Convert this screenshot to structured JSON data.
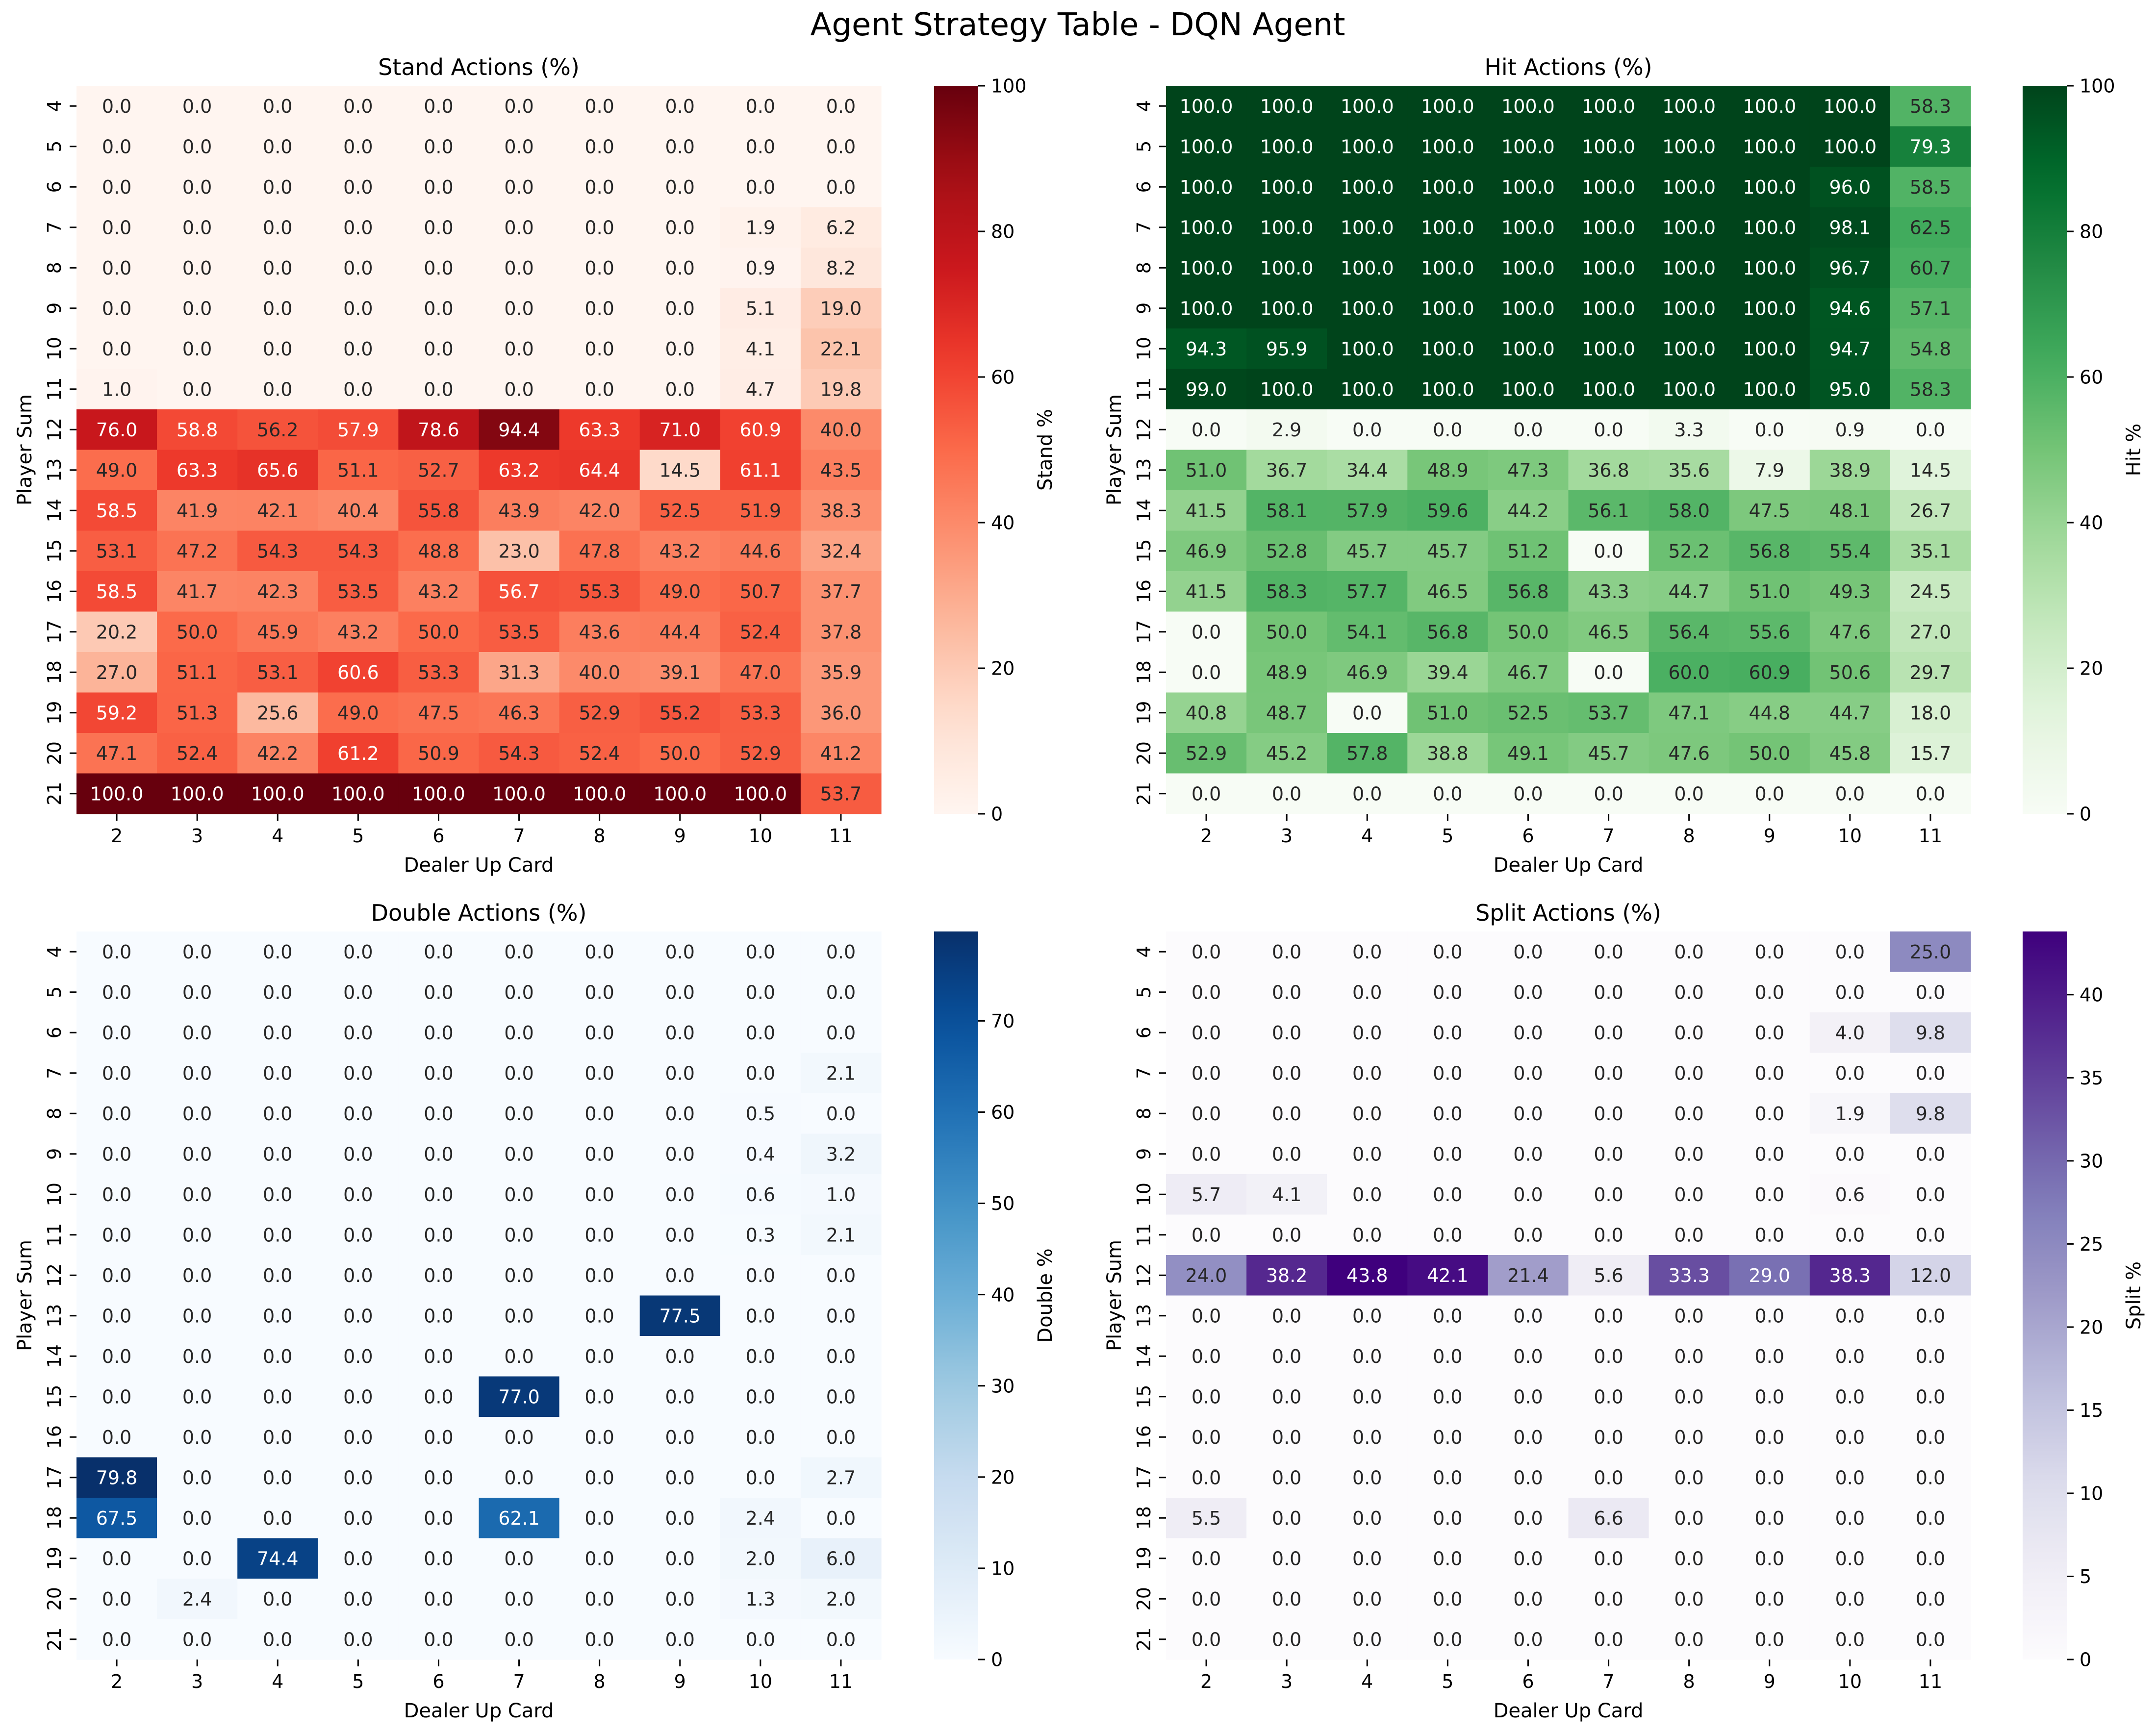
{
  "figure_title": "Agent Strategy Table - DQN Agent",
  "chart_data": [
    {
      "type": "heatmap",
      "title": "Stand Actions (%)",
      "xlabel": "Dealer Up Card",
      "ylabel": "Player Sum",
      "colorbar_label": "Stand %",
      "colormap": "Reds",
      "x_labels": [
        "2",
        "3",
        "4",
        "5",
        "6",
        "7",
        "8",
        "9",
        "10",
        "11"
      ],
      "y_labels": [
        "4",
        "5",
        "6",
        "7",
        "8",
        "9",
        "10",
        "11",
        "12",
        "13",
        "14",
        "15",
        "16",
        "17",
        "18",
        "19",
        "20",
        "21"
      ],
      "vmin": 0,
      "vmax": 100,
      "colorbar_ticks": [
        0,
        20,
        40,
        60,
        80,
        100
      ],
      "values": [
        [
          0.0,
          0.0,
          0.0,
          0.0,
          0.0,
          0.0,
          0.0,
          0.0,
          0.0,
          0.0
        ],
        [
          0.0,
          0.0,
          0.0,
          0.0,
          0.0,
          0.0,
          0.0,
          0.0,
          0.0,
          0.0
        ],
        [
          0.0,
          0.0,
          0.0,
          0.0,
          0.0,
          0.0,
          0.0,
          0.0,
          0.0,
          0.0
        ],
        [
          0.0,
          0.0,
          0.0,
          0.0,
          0.0,
          0.0,
          0.0,
          0.0,
          1.9,
          6.2
        ],
        [
          0.0,
          0.0,
          0.0,
          0.0,
          0.0,
          0.0,
          0.0,
          0.0,
          0.9,
          8.2
        ],
        [
          0.0,
          0.0,
          0.0,
          0.0,
          0.0,
          0.0,
          0.0,
          0.0,
          5.1,
          19.0
        ],
        [
          0.0,
          0.0,
          0.0,
          0.0,
          0.0,
          0.0,
          0.0,
          0.0,
          4.1,
          22.1
        ],
        [
          1.0,
          0.0,
          0.0,
          0.0,
          0.0,
          0.0,
          0.0,
          0.0,
          4.7,
          19.8
        ],
        [
          76.0,
          58.8,
          56.2,
          57.9,
          78.6,
          94.4,
          63.3,
          71.0,
          60.9,
          40.0
        ],
        [
          49.0,
          63.3,
          65.6,
          51.1,
          52.7,
          63.2,
          64.4,
          14.5,
          61.1,
          43.5
        ],
        [
          58.5,
          41.9,
          42.1,
          40.4,
          55.8,
          43.9,
          42.0,
          52.5,
          51.9,
          38.3
        ],
        [
          53.1,
          47.2,
          54.3,
          54.3,
          48.8,
          23.0,
          47.8,
          43.2,
          44.6,
          32.4
        ],
        [
          58.5,
          41.7,
          42.3,
          53.5,
          43.2,
          56.7,
          55.3,
          49.0,
          50.7,
          37.7
        ],
        [
          20.2,
          50.0,
          45.9,
          43.2,
          50.0,
          53.5,
          43.6,
          44.4,
          52.4,
          37.8
        ],
        [
          27.0,
          51.1,
          53.1,
          60.6,
          53.3,
          31.3,
          40.0,
          39.1,
          47.0,
          35.9
        ],
        [
          59.2,
          51.3,
          25.6,
          49.0,
          47.5,
          46.3,
          52.9,
          55.2,
          53.3,
          36.0
        ],
        [
          47.1,
          52.4,
          42.2,
          61.2,
          50.9,
          54.3,
          52.4,
          50.0,
          52.9,
          41.2
        ],
        [
          100.0,
          100.0,
          100.0,
          100.0,
          100.0,
          100.0,
          100.0,
          100.0,
          100.0,
          53.7
        ]
      ]
    },
    {
      "type": "heatmap",
      "title": "Hit Actions (%)",
      "xlabel": "Dealer Up Card",
      "ylabel": "Player Sum",
      "colorbar_label": "Hit %",
      "colormap": "Greens",
      "x_labels": [
        "2",
        "3",
        "4",
        "5",
        "6",
        "7",
        "8",
        "9",
        "10",
        "11"
      ],
      "y_labels": [
        "4",
        "5",
        "6",
        "7",
        "8",
        "9",
        "10",
        "11",
        "12",
        "13",
        "14",
        "15",
        "16",
        "17",
        "18",
        "19",
        "20",
        "21"
      ],
      "vmin": 0,
      "vmax": 100,
      "colorbar_ticks": [
        0,
        20,
        40,
        60,
        80,
        100
      ],
      "values": [
        [
          100.0,
          100.0,
          100.0,
          100.0,
          100.0,
          100.0,
          100.0,
          100.0,
          100.0,
          58.3
        ],
        [
          100.0,
          100.0,
          100.0,
          100.0,
          100.0,
          100.0,
          100.0,
          100.0,
          100.0,
          79.3
        ],
        [
          100.0,
          100.0,
          100.0,
          100.0,
          100.0,
          100.0,
          100.0,
          100.0,
          96.0,
          58.5
        ],
        [
          100.0,
          100.0,
          100.0,
          100.0,
          100.0,
          100.0,
          100.0,
          100.0,
          98.1,
          62.5
        ],
        [
          100.0,
          100.0,
          100.0,
          100.0,
          100.0,
          100.0,
          100.0,
          100.0,
          96.7,
          60.7
        ],
        [
          100.0,
          100.0,
          100.0,
          100.0,
          100.0,
          100.0,
          100.0,
          100.0,
          94.6,
          57.1
        ],
        [
          94.3,
          95.9,
          100.0,
          100.0,
          100.0,
          100.0,
          100.0,
          100.0,
          94.7,
          54.8
        ],
        [
          99.0,
          100.0,
          100.0,
          100.0,
          100.0,
          100.0,
          100.0,
          100.0,
          95.0,
          58.3
        ],
        [
          0.0,
          2.9,
          0.0,
          0.0,
          0.0,
          0.0,
          3.3,
          0.0,
          0.9,
          0.0
        ],
        [
          51.0,
          36.7,
          34.4,
          48.9,
          47.3,
          36.8,
          35.6,
          7.9,
          38.9,
          14.5
        ],
        [
          41.5,
          58.1,
          57.9,
          59.6,
          44.2,
          56.1,
          58.0,
          47.5,
          48.1,
          26.7
        ],
        [
          46.9,
          52.8,
          45.7,
          45.7,
          51.2,
          0.0,
          52.2,
          56.8,
          55.4,
          35.1
        ],
        [
          41.5,
          58.3,
          57.7,
          46.5,
          56.8,
          43.3,
          44.7,
          51.0,
          49.3,
          24.5
        ],
        [
          0.0,
          50.0,
          54.1,
          56.8,
          50.0,
          46.5,
          56.4,
          55.6,
          47.6,
          27.0
        ],
        [
          0.0,
          48.9,
          46.9,
          39.4,
          46.7,
          0.0,
          60.0,
          60.9,
          50.6,
          29.7
        ],
        [
          40.8,
          48.7,
          0.0,
          51.0,
          52.5,
          53.7,
          47.1,
          44.8,
          44.7,
          18.0
        ],
        [
          52.9,
          45.2,
          57.8,
          38.8,
          49.1,
          45.7,
          47.6,
          50.0,
          45.8,
          15.7
        ],
        [
          0.0,
          0.0,
          0.0,
          0.0,
          0.0,
          0.0,
          0.0,
          0.0,
          0.0,
          0.0
        ]
      ]
    },
    {
      "type": "heatmap",
      "title": "Double Actions (%)",
      "xlabel": "Dealer Up Card",
      "ylabel": "Player Sum",
      "colorbar_label": "Double %",
      "colormap": "Blues",
      "x_labels": [
        "2",
        "3",
        "4",
        "5",
        "6",
        "7",
        "8",
        "9",
        "10",
        "11"
      ],
      "y_labels": [
        "4",
        "5",
        "6",
        "7",
        "8",
        "9",
        "10",
        "11",
        "12",
        "13",
        "14",
        "15",
        "16",
        "17",
        "18",
        "19",
        "20",
        "21"
      ],
      "vmin": 0,
      "vmax": 79.8,
      "colorbar_ticks": [
        0,
        10,
        20,
        30,
        40,
        50,
        60,
        70
      ],
      "values": [
        [
          0.0,
          0.0,
          0.0,
          0.0,
          0.0,
          0.0,
          0.0,
          0.0,
          0.0,
          0.0
        ],
        [
          0.0,
          0.0,
          0.0,
          0.0,
          0.0,
          0.0,
          0.0,
          0.0,
          0.0,
          0.0
        ],
        [
          0.0,
          0.0,
          0.0,
          0.0,
          0.0,
          0.0,
          0.0,
          0.0,
          0.0,
          0.0
        ],
        [
          0.0,
          0.0,
          0.0,
          0.0,
          0.0,
          0.0,
          0.0,
          0.0,
          0.0,
          2.1
        ],
        [
          0.0,
          0.0,
          0.0,
          0.0,
          0.0,
          0.0,
          0.0,
          0.0,
          0.5,
          0.0
        ],
        [
          0.0,
          0.0,
          0.0,
          0.0,
          0.0,
          0.0,
          0.0,
          0.0,
          0.4,
          3.2
        ],
        [
          0.0,
          0.0,
          0.0,
          0.0,
          0.0,
          0.0,
          0.0,
          0.0,
          0.6,
          1.0
        ],
        [
          0.0,
          0.0,
          0.0,
          0.0,
          0.0,
          0.0,
          0.0,
          0.0,
          0.3,
          2.1
        ],
        [
          0.0,
          0.0,
          0.0,
          0.0,
          0.0,
          0.0,
          0.0,
          0.0,
          0.0,
          0.0
        ],
        [
          0.0,
          0.0,
          0.0,
          0.0,
          0.0,
          0.0,
          0.0,
          77.5,
          0.0,
          0.0
        ],
        [
          0.0,
          0.0,
          0.0,
          0.0,
          0.0,
          0.0,
          0.0,
          0.0,
          0.0,
          0.0
        ],
        [
          0.0,
          0.0,
          0.0,
          0.0,
          0.0,
          77.0,
          0.0,
          0.0,
          0.0,
          0.0
        ],
        [
          0.0,
          0.0,
          0.0,
          0.0,
          0.0,
          0.0,
          0.0,
          0.0,
          0.0,
          0.0
        ],
        [
          79.8,
          0.0,
          0.0,
          0.0,
          0.0,
          0.0,
          0.0,
          0.0,
          0.0,
          2.7
        ],
        [
          67.5,
          0.0,
          0.0,
          0.0,
          0.0,
          62.1,
          0.0,
          0.0,
          2.4,
          0.0
        ],
        [
          0.0,
          0.0,
          74.4,
          0.0,
          0.0,
          0.0,
          0.0,
          0.0,
          2.0,
          6.0
        ],
        [
          0.0,
          2.4,
          0.0,
          0.0,
          0.0,
          0.0,
          0.0,
          0.0,
          1.3,
          2.0
        ],
        [
          0.0,
          0.0,
          0.0,
          0.0,
          0.0,
          0.0,
          0.0,
          0.0,
          0.0,
          0.0
        ]
      ]
    },
    {
      "type": "heatmap",
      "title": "Split Actions (%)",
      "xlabel": "Dealer Up Card",
      "ylabel": "Player Sum",
      "colorbar_label": "Split %",
      "colormap": "Purples",
      "x_labels": [
        "2",
        "3",
        "4",
        "5",
        "6",
        "7",
        "8",
        "9",
        "10",
        "11"
      ],
      "y_labels": [
        "4",
        "5",
        "6",
        "7",
        "8",
        "9",
        "10",
        "11",
        "12",
        "13",
        "14",
        "15",
        "16",
        "17",
        "18",
        "19",
        "20",
        "21"
      ],
      "vmin": 0,
      "vmax": 43.8,
      "colorbar_ticks": [
        0,
        5,
        10,
        15,
        20,
        25,
        30,
        35,
        40
      ],
      "values": [
        [
          0.0,
          0.0,
          0.0,
          0.0,
          0.0,
          0.0,
          0.0,
          0.0,
          0.0,
          25.0
        ],
        [
          0.0,
          0.0,
          0.0,
          0.0,
          0.0,
          0.0,
          0.0,
          0.0,
          0.0,
          0.0
        ],
        [
          0.0,
          0.0,
          0.0,
          0.0,
          0.0,
          0.0,
          0.0,
          0.0,
          4.0,
          9.8
        ],
        [
          0.0,
          0.0,
          0.0,
          0.0,
          0.0,
          0.0,
          0.0,
          0.0,
          0.0,
          0.0
        ],
        [
          0.0,
          0.0,
          0.0,
          0.0,
          0.0,
          0.0,
          0.0,
          0.0,
          1.9,
          9.8
        ],
        [
          0.0,
          0.0,
          0.0,
          0.0,
          0.0,
          0.0,
          0.0,
          0.0,
          0.0,
          0.0
        ],
        [
          5.7,
          4.1,
          0.0,
          0.0,
          0.0,
          0.0,
          0.0,
          0.0,
          0.6,
          0.0
        ],
        [
          0.0,
          0.0,
          0.0,
          0.0,
          0.0,
          0.0,
          0.0,
          0.0,
          0.0,
          0.0
        ],
        [
          24.0,
          38.2,
          43.8,
          42.1,
          21.4,
          5.6,
          33.3,
          29.0,
          38.3,
          12.0
        ],
        [
          0.0,
          0.0,
          0.0,
          0.0,
          0.0,
          0.0,
          0.0,
          0.0,
          0.0,
          0.0
        ],
        [
          0.0,
          0.0,
          0.0,
          0.0,
          0.0,
          0.0,
          0.0,
          0.0,
          0.0,
          0.0
        ],
        [
          0.0,
          0.0,
          0.0,
          0.0,
          0.0,
          0.0,
          0.0,
          0.0,
          0.0,
          0.0
        ],
        [
          0.0,
          0.0,
          0.0,
          0.0,
          0.0,
          0.0,
          0.0,
          0.0,
          0.0,
          0.0
        ],
        [
          0.0,
          0.0,
          0.0,
          0.0,
          0.0,
          0.0,
          0.0,
          0.0,
          0.0,
          0.0
        ],
        [
          5.5,
          0.0,
          0.0,
          0.0,
          0.0,
          6.6,
          0.0,
          0.0,
          0.0,
          0.0
        ],
        [
          0.0,
          0.0,
          0.0,
          0.0,
          0.0,
          0.0,
          0.0,
          0.0,
          0.0,
          0.0
        ],
        [
          0.0,
          0.0,
          0.0,
          0.0,
          0.0,
          0.0,
          0.0,
          0.0,
          0.0,
          0.0
        ],
        [
          0.0,
          0.0,
          0.0,
          0.0,
          0.0,
          0.0,
          0.0,
          0.0,
          0.0,
          0.0
        ]
      ]
    }
  ]
}
